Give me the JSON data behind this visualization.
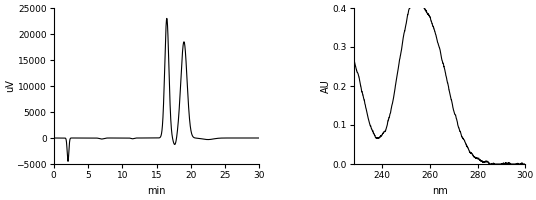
{
  "left_chart": {
    "xlabel": "min",
    "ylabel": "uV",
    "xlim": [
      0,
      30
    ],
    "ylim": [
      -5000,
      25000
    ],
    "yticks": [
      -5000,
      0,
      5000,
      10000,
      15000,
      20000,
      25000
    ],
    "xticks": [
      0,
      5,
      10,
      15,
      20,
      25,
      30
    ],
    "line_color": "black",
    "linewidth": 0.8,
    "background": "white"
  },
  "right_chart": {
    "xlabel": "nm",
    "ylabel": "AU",
    "xlim": [
      228,
      300
    ],
    "ylim": [
      0.0,
      0.4
    ],
    "yticks": [
      0.0,
      0.1,
      0.2,
      0.3,
      0.4
    ],
    "xticks": [
      240,
      260,
      280,
      300
    ],
    "line_color": "black",
    "linewidth": 0.8,
    "background": "white"
  }
}
